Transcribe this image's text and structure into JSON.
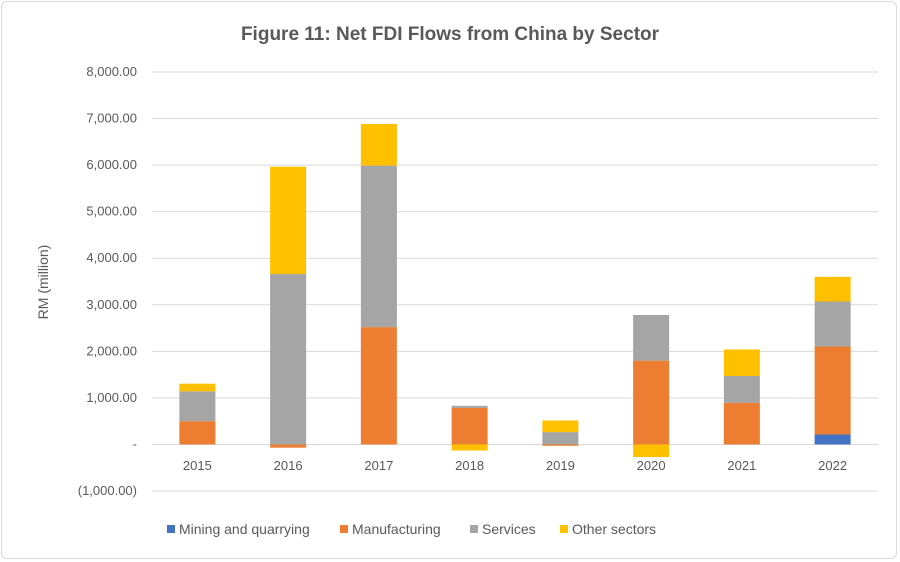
{
  "chart_data": {
    "type": "bar",
    "stacked": true,
    "title": "Figure 11: Net FDI Flows from China by Sector",
    "xlabel": "",
    "ylabel": "RM (million)",
    "ylim": [
      -1000,
      8000
    ],
    "yticks": [
      -1000,
      0,
      1000,
      2000,
      3000,
      4000,
      5000,
      6000,
      7000,
      8000
    ],
    "ytick_labels": [
      "(1,000.00)",
      "-",
      "1,000.00",
      "2,000.00",
      "3,000.00",
      "4,000.00",
      "5,000.00",
      "6,000.00",
      "7,000.00",
      "8,000.00"
    ],
    "grid": true,
    "legend_position": "bottom",
    "categories": [
      "2015",
      "2016",
      "2017",
      "2018",
      "2019",
      "2020",
      "2021",
      "2022"
    ],
    "series": [
      {
        "name": "Mining and quarrying",
        "color": "#4472C4",
        "values": [
          0,
          0,
          0,
          0,
          0,
          0,
          0,
          215
        ]
      },
      {
        "name": "Manufacturing",
        "color": "#ED7D31",
        "values": [
          500,
          -70,
          2520,
          785,
          -30,
          1800,
          895,
          1890
        ]
      },
      {
        "name": "Services",
        "color": "#A5A5A5",
        "values": [
          640,
          3660,
          3470,
          45,
          265,
          980,
          575,
          965
        ]
      },
      {
        "name": "Other sectors",
        "color": "#FFC000",
        "values": [
          165,
          2305,
          895,
          -130,
          250,
          -270,
          570,
          530
        ]
      }
    ]
  }
}
